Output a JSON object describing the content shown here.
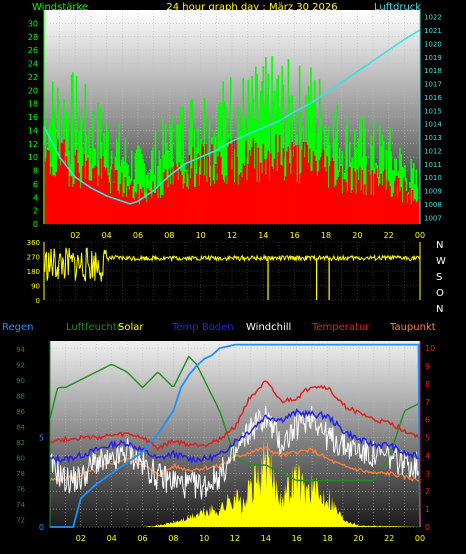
{
  "header": {
    "title": "24 hour graph day : März 30 2026",
    "left_label": "Windstärke",
    "right_label": "Luftdruck"
  },
  "legend": {
    "regen": "Regen",
    "luftfeuchte": "Luftfeuchte",
    "solar": "Solar",
    "temp_boden": "Temp Boden",
    "windchill": "Windchill",
    "temperatur": "Temperatur",
    "taupunkt": "Taupunkt"
  },
  "colors": {
    "wind_gust": "#00ff00",
    "wind_avg": "#ff0000",
    "pressure": "#40e0e0",
    "direction": "#ffff00",
    "humidity": "#228b22",
    "solar": "#ffff00",
    "rain": "#1e90ff",
    "temp_boden": "#2222ee",
    "windchill": "#ffffff",
    "temperatur": "#dd2222",
    "taupunkt": "#ff7f3f"
  },
  "chart_data": [
    {
      "type": "area",
      "name": "wind",
      "x_ticks": [
        "02",
        "04",
        "06",
        "08",
        "10",
        "12",
        "14",
        "16",
        "18",
        "20",
        "22",
        "00"
      ],
      "y_left_ticks": [
        0,
        2,
        4,
        6,
        8,
        10,
        12,
        14,
        16,
        18,
        20,
        22,
        24,
        26,
        28,
        30
      ],
      "y_right_ticks": [
        1007,
        1008,
        1009,
        1010,
        1011,
        1012,
        1013,
        1014,
        1015,
        1016,
        1017,
        1018,
        1019,
        1020,
        1021,
        1022
      ],
      "ylim_left": [
        0,
        32
      ],
      "ylim_right": [
        1006.5,
        1022.5
      ],
      "xlim": [
        0,
        24
      ],
      "pressure": {
        "x": [
          0,
          1,
          2,
          3,
          4,
          5,
          5.5,
          6,
          7,
          8,
          9,
          10,
          11,
          12,
          13,
          14,
          15,
          16,
          17,
          18,
          19,
          20,
          21,
          22,
          23,
          24
        ],
        "y": [
          1013.8,
          1011.5,
          1010.0,
          1009.2,
          1008.6,
          1008.2,
          1008.0,
          1008.2,
          1009.0,
          1010.1,
          1011.0,
          1011.5,
          1012.0,
          1012.7,
          1013.2,
          1013.7,
          1014.2,
          1014.9,
          1015.5,
          1016.3,
          1017.1,
          1017.9,
          1018.7,
          1019.5,
          1020.3,
          1021.0
        ]
      },
      "gust_envelope": {
        "x": [
          0,
          1,
          2,
          3,
          4,
          5,
          6,
          7,
          8,
          9,
          10,
          11,
          12,
          13,
          14,
          15,
          16,
          17,
          18,
          19,
          20,
          21,
          22,
          23,
          24
        ],
        "y": [
          22,
          24,
          23,
          20,
          18,
          15,
          12,
          14,
          17,
          20,
          22,
          21,
          24,
          23,
          25,
          26,
          24,
          25,
          22,
          18,
          17,
          16,
          15,
          12,
          8
        ]
      },
      "avg_envelope": {
        "x": [
          0,
          1,
          2,
          3,
          4,
          5,
          6,
          7,
          8,
          9,
          10,
          11,
          12,
          13,
          14,
          15,
          16,
          17,
          18,
          19,
          20,
          21,
          22,
          23,
          24
        ],
        "y": [
          12,
          13,
          12,
          11,
          10,
          8,
          6,
          7,
          9,
          11,
          12,
          12,
          13,
          13,
          14,
          14,
          13,
          13,
          12,
          10,
          9,
          9,
          8,
          7,
          4
        ]
      }
    },
    {
      "type": "scatter",
      "name": "wind_direction",
      "x_ticks": [
        "02",
        "04",
        "06",
        "08",
        "10",
        "12",
        "14",
        "16",
        "18",
        "20",
        "22",
        "00"
      ],
      "y_ticks": [
        0,
        90,
        180,
        270,
        360
      ],
      "compass_labels": [
        "N",
        "W",
        "S",
        "O",
        "N"
      ],
      "ylim": [
        0,
        360
      ],
      "xlim": [
        0,
        24
      ],
      "baseline": 260
    },
    {
      "type": "line",
      "name": "weather",
      "x_ticks": [
        "02",
        "04",
        "06",
        "08",
        "10",
        "12",
        "14",
        "16",
        "18",
        "20",
        "22",
        "00"
      ],
      "y_left_ticks": [
        72,
        74,
        76,
        78,
        80,
        82,
        84,
        86,
        88,
        90,
        92,
        94
      ],
      "ylim_left": [
        71,
        95
      ],
      "y_right_ticks": [
        0,
        1,
        2,
        3,
        4,
        5,
        6,
        7,
        8,
        9,
        10
      ],
      "ylim_right": [
        0,
        10.4
      ],
      "rain_ticks": [
        0,
        5
      ],
      "xlim": [
        0,
        24
      ],
      "humidity": {
        "x": [
          0,
          0.5,
          1,
          2,
          3,
          4,
          5,
          6,
          7,
          8,
          9,
          9.5,
          10,
          10.5,
          11,
          12,
          13,
          14,
          15,
          16,
          17,
          18,
          19,
          20,
          21,
          22,
          23,
          24
        ],
        "y": [
          85,
          89,
          89,
          90,
          91,
          92,
          91,
          89,
          91,
          89,
          93,
          92,
          90,
          88,
          86,
          80,
          79,
          79,
          78,
          77,
          77,
          77,
          77,
          77,
          77,
          80,
          86,
          87
        ]
      },
      "temperatur": {
        "x": [
          0,
          1,
          2,
          3,
          4,
          5,
          6,
          7,
          8,
          9,
          10,
          11,
          12,
          13,
          14,
          15,
          16,
          17,
          18,
          19,
          20,
          21,
          22,
          23,
          24
        ],
        "y": [
          4.8,
          4.9,
          5.0,
          5.0,
          5.1,
          5.2,
          5.0,
          4.4,
          4.8,
          4.6,
          4.6,
          4.9,
          5.6,
          7.3,
          8.1,
          7.0,
          7.2,
          7.9,
          7.8,
          6.8,
          6.4,
          6.0,
          5.8,
          5.4,
          5.0
        ]
      },
      "temp_boden": {
        "x": [
          0,
          1,
          2,
          3,
          4,
          5,
          6,
          7,
          8,
          9,
          10,
          11,
          12,
          13,
          14,
          15,
          16,
          17,
          18,
          19,
          20,
          21,
          22,
          23,
          24
        ],
        "y": [
          3.8,
          3.8,
          4.0,
          4.3,
          4.6,
          4.7,
          4.3,
          3.8,
          4.1,
          3.8,
          3.8,
          4.0,
          4.8,
          5.4,
          6.2,
          6.0,
          6.4,
          6.3,
          6.2,
          5.4,
          4.9,
          4.6,
          4.6,
          4.1,
          3.9
        ]
      },
      "windchill": {
        "x": [
          0,
          1,
          2,
          3,
          4,
          5,
          6,
          7,
          8,
          9,
          10,
          11,
          12,
          13,
          14,
          15,
          16,
          17,
          18,
          19,
          20,
          21,
          22,
          23,
          24
        ],
        "y": [
          3.5,
          2.6,
          2.7,
          3.7,
          3.5,
          4.3,
          3.5,
          2.8,
          2.6,
          2.3,
          2.3,
          2.9,
          4.0,
          5.5,
          6.2,
          4.6,
          5.6,
          6.3,
          5.0,
          4.6,
          4.3,
          4.0,
          3.9,
          3.6,
          3.4
        ]
      },
      "taupunkt": {
        "x": [
          0,
          1,
          2,
          3,
          4,
          5,
          6,
          7,
          8,
          9,
          10,
          11,
          12,
          13,
          14,
          15,
          16,
          17,
          18,
          19,
          20,
          21,
          22,
          23,
          24
        ],
        "y": [
          2.6,
          2.7,
          2.9,
          3.2,
          3.6,
          3.8,
          3.5,
          2.9,
          3.4,
          3.2,
          3.3,
          3.4,
          3.9,
          4.2,
          4.4,
          4.0,
          4.2,
          4.3,
          3.8,
          3.4,
          3.2,
          3.0,
          3.0,
          2.8,
          2.6
        ]
      },
      "solar": {
        "x": [
          0,
          6,
          7,
          8,
          9,
          10,
          11,
          11.5,
          12,
          12.5,
          13,
          13.5,
          14,
          14.5,
          15,
          15.5,
          16,
          16.5,
          17,
          17.5,
          18,
          18.5,
          19,
          20,
          24
        ],
        "y": [
          0,
          0,
          0.1,
          0.3,
          0.6,
          1.0,
          1.2,
          1.6,
          2.2,
          1.3,
          2.6,
          3.2,
          4.5,
          3.0,
          2.1,
          2.7,
          3.6,
          2.4,
          2.8,
          2.0,
          2.3,
          1.3,
          0.6,
          0.1,
          0
        ]
      },
      "rain": {
        "x": [
          0,
          1.5,
          2,
          3,
          4,
          5,
          6,
          7,
          8,
          8.5,
          9,
          9.5,
          10,
          10.5,
          11,
          12,
          23.9,
          24
        ],
        "y": [
          0,
          0,
          1.6,
          2.4,
          3.0,
          3.6,
          4.2,
          5.2,
          6.5,
          7.8,
          8.5,
          9.0,
          9.4,
          9.6,
          10.0,
          10.2,
          10.2,
          0
        ]
      }
    }
  ]
}
